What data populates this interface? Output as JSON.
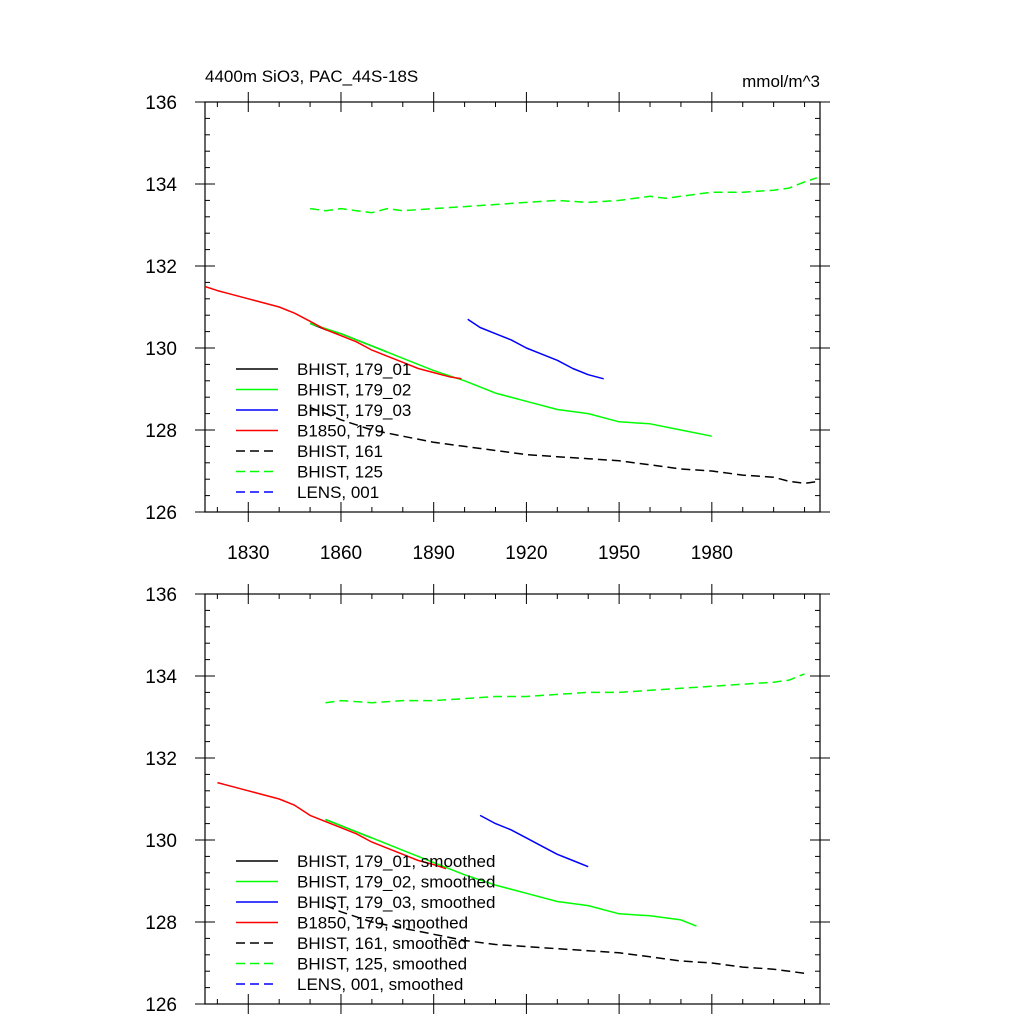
{
  "chart_data": [
    {
      "type": "line",
      "title": "4400m SiO3, PAC_44S-18S",
      "units": "mmol/m^3",
      "xlim": [
        1816,
        2015
      ],
      "ylim": [
        126,
        136
      ],
      "xticks": [
        1830,
        1860,
        1890,
        1920,
        1950,
        1980
      ],
      "xtick_labels": [
        "1830",
        "1860",
        "1890",
        "1920",
        "1950",
        "1980"
      ],
      "yticks": [
        126,
        128,
        130,
        132,
        134,
        136
      ],
      "ytick_labels": [
        "126",
        "128",
        "130",
        "132",
        "134",
        "136"
      ],
      "show_xtick_labels": true,
      "grid": false,
      "legend_position": "bottom-left",
      "series": [
        {
          "name": "BHIST, 179_01",
          "color": "#000000",
          "dash": "solid",
          "x": [
            1850,
            1855,
            1860,
            1865,
            1870,
            1875
          ],
          "y": [
            130.6,
            130.45,
            130.35,
            130.2,
            130.05,
            129.9
          ]
        },
        {
          "name": "BHIST, 179_02",
          "color": "#00ff00",
          "dash": "solid",
          "x": [
            1850,
            1860,
            1870,
            1880,
            1890,
            1900,
            1910,
            1920,
            1930,
            1940,
            1950,
            1960,
            1970,
            1980
          ],
          "y": [
            130.6,
            130.35,
            130.05,
            129.75,
            129.45,
            129.2,
            128.9,
            128.7,
            128.5,
            128.4,
            128.2,
            128.15,
            128.0,
            127.85
          ]
        },
        {
          "name": "BHIST, 179_03",
          "color": "#0000ff",
          "dash": "solid",
          "x": [
            1901,
            1905,
            1910,
            1915,
            1920,
            1925,
            1930,
            1935,
            1940,
            1945
          ],
          "y": [
            130.7,
            130.5,
            130.35,
            130.2,
            130.0,
            129.85,
            129.7,
            129.5,
            129.35,
            129.25
          ]
        },
        {
          "name": "B1850, 179",
          "color": "#ff0000",
          "dash": "solid",
          "x": [
            1816,
            1820,
            1825,
            1830,
            1835,
            1840,
            1845,
            1850,
            1855,
            1860,
            1865,
            1870,
            1875,
            1880,
            1885,
            1890,
            1895,
            1899
          ],
          "y": [
            131.5,
            131.4,
            131.3,
            131.2,
            131.1,
            131.0,
            130.85,
            130.65,
            130.45,
            130.3,
            130.15,
            129.95,
            129.8,
            129.65,
            129.5,
            129.4,
            129.3,
            129.25
          ]
        },
        {
          "name": "BHIST, 161",
          "color": "#000000",
          "dash": "dashed",
          "x": [
            1850,
            1855,
            1860,
            1870,
            1880,
            1890,
            1900,
            1910,
            1920,
            1930,
            1940,
            1950,
            1960,
            1970,
            1980,
            1990,
            2000,
            2005,
            2010,
            2015
          ],
          "y": [
            128.55,
            128.4,
            128.25,
            128.0,
            127.85,
            127.7,
            127.6,
            127.5,
            127.4,
            127.35,
            127.3,
            127.25,
            127.15,
            127.05,
            127.0,
            126.9,
            126.85,
            126.75,
            126.7,
            126.75
          ]
        },
        {
          "name": "BHIST, 125",
          "color": "#00ff00",
          "dash": "dashed",
          "x": [
            1850,
            1855,
            1860,
            1865,
            1870,
            1875,
            1880,
            1890,
            1900,
            1910,
            1920,
            1930,
            1940,
            1950,
            1960,
            1965,
            1970,
            1980,
            1990,
            2000,
            2005,
            2010,
            2014
          ],
          "y": [
            133.4,
            133.35,
            133.4,
            133.35,
            133.3,
            133.4,
            133.35,
            133.4,
            133.45,
            133.5,
            133.55,
            133.6,
            133.55,
            133.6,
            133.7,
            133.65,
            133.7,
            133.8,
            133.8,
            133.85,
            133.9,
            134.05,
            134.15
          ]
        },
        {
          "name": "LENS, 001",
          "color": "#0000ff",
          "dash": "dashed",
          "x": [],
          "y": []
        }
      ]
    },
    {
      "type": "line",
      "title": "",
      "units": "",
      "xlim": [
        1816,
        2015
      ],
      "ylim": [
        126,
        136
      ],
      "xticks": [
        1830,
        1860,
        1890,
        1920,
        1950,
        1980
      ],
      "xtick_labels": [],
      "yticks": [
        126,
        128,
        130,
        132,
        134,
        136
      ],
      "ytick_labels": [
        "126",
        "128",
        "130",
        "132",
        "134",
        "136"
      ],
      "show_xtick_labels": false,
      "grid": false,
      "legend_position": "bottom-left",
      "series": [
        {
          "name": "BHIST, 179_01, smoothed",
          "color": "#000000",
          "dash": "solid",
          "x": [
            1855,
            1860,
            1865,
            1870
          ],
          "y": [
            130.5,
            130.35,
            130.2,
            130.05
          ]
        },
        {
          "name": "BHIST, 179_02, smoothed",
          "color": "#00ff00",
          "dash": "solid",
          "x": [
            1855,
            1860,
            1870,
            1880,
            1890,
            1900,
            1910,
            1920,
            1930,
            1940,
            1950,
            1960,
            1970,
            1975
          ],
          "y": [
            130.5,
            130.35,
            130.05,
            129.75,
            129.45,
            129.15,
            128.9,
            128.7,
            128.5,
            128.4,
            128.2,
            128.15,
            128.05,
            127.9
          ]
        },
        {
          "name": "BHIST, 179_03, smoothed",
          "color": "#0000ff",
          "dash": "solid",
          "x": [
            1905,
            1910,
            1915,
            1920,
            1925,
            1930,
            1935,
            1940
          ],
          "y": [
            130.6,
            130.4,
            130.25,
            130.05,
            129.85,
            129.65,
            129.5,
            129.35
          ]
        },
        {
          "name": "B1850, 179, smoothed",
          "color": "#ff0000",
          "dash": "solid",
          "x": [
            1820,
            1825,
            1830,
            1835,
            1840,
            1845,
            1850,
            1855,
            1860,
            1865,
            1870,
            1875,
            1880,
            1885,
            1890,
            1894
          ],
          "y": [
            131.4,
            131.3,
            131.2,
            131.1,
            131.0,
            130.85,
            130.6,
            130.45,
            130.3,
            130.15,
            129.95,
            129.8,
            129.65,
            129.5,
            129.4,
            129.3
          ]
        },
        {
          "name": "BHIST, 161, smoothed",
          "color": "#000000",
          "dash": "dashed",
          "x": [
            1855,
            1860,
            1870,
            1880,
            1890,
            1900,
            1910,
            1920,
            1930,
            1940,
            1950,
            1960,
            1970,
            1980,
            1990,
            2000,
            2010
          ],
          "y": [
            128.4,
            128.25,
            128.0,
            127.85,
            127.7,
            127.55,
            127.45,
            127.4,
            127.35,
            127.3,
            127.25,
            127.15,
            127.05,
            127.0,
            126.9,
            126.85,
            126.75
          ]
        },
        {
          "name": "BHIST, 125, smoothed",
          "color": "#00ff00",
          "dash": "dashed",
          "x": [
            1855,
            1860,
            1870,
            1880,
            1890,
            1900,
            1910,
            1920,
            1930,
            1940,
            1950,
            1960,
            1970,
            1980,
            1990,
            2000,
            2005,
            2010
          ],
          "y": [
            133.35,
            133.4,
            133.35,
            133.4,
            133.4,
            133.45,
            133.5,
            133.5,
            133.55,
            133.6,
            133.6,
            133.65,
            133.7,
            133.75,
            133.8,
            133.85,
            133.9,
            134.05
          ]
        },
        {
          "name": "LENS, 001, smoothed",
          "color": "#0000ff",
          "dash": "dashed",
          "x": [],
          "y": []
        }
      ]
    }
  ]
}
